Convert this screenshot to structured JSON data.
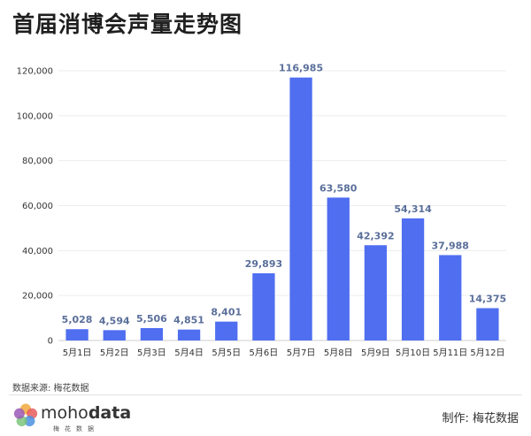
{
  "title": "首届消博会声量走势图",
  "source_text": "数据来源: 梅花数据",
  "maker_text": "制作: 梅花数据",
  "logo": {
    "word_part1": "moho",
    "word_part2": "data",
    "subtitle": "梅花数据",
    "colors": [
      "#f2a93b",
      "#e85d5d",
      "#4a90e2",
      "#7bc67b",
      "#9b59b6"
    ]
  },
  "chart_data": {
    "type": "bar",
    "title": "首届消博会声量走势图",
    "xlabel": "",
    "ylabel": "",
    "categories": [
      "5月1日",
      "5月2日",
      "5月3日",
      "5月4日",
      "5月5日",
      "5月6日",
      "5月7日",
      "5月8日",
      "5月9日",
      "5月10日",
      "5月11日",
      "5月12日"
    ],
    "values": [
      5028,
      4594,
      5506,
      4851,
      8401,
      29893,
      116985,
      63580,
      42392,
      54314,
      37988,
      14375
    ],
    "value_labels": [
      "5,028",
      "4,594",
      "5,506",
      "4,851",
      "8,401",
      "29,893",
      "116,985",
      "63,580",
      "42,392",
      "54,314",
      "37,988",
      "14,375"
    ],
    "ylim": [
      0,
      120000
    ],
    "yticks": [
      0,
      20000,
      40000,
      60000,
      80000,
      100000,
      120000
    ],
    "ytick_labels": [
      "0",
      "20,000",
      "40,000",
      "60,000",
      "80,000",
      "100,000",
      "120,000"
    ],
    "bar_color": "#4f6ef0",
    "label_color": "#5a6f9a",
    "grid": true,
    "legend": "none"
  }
}
